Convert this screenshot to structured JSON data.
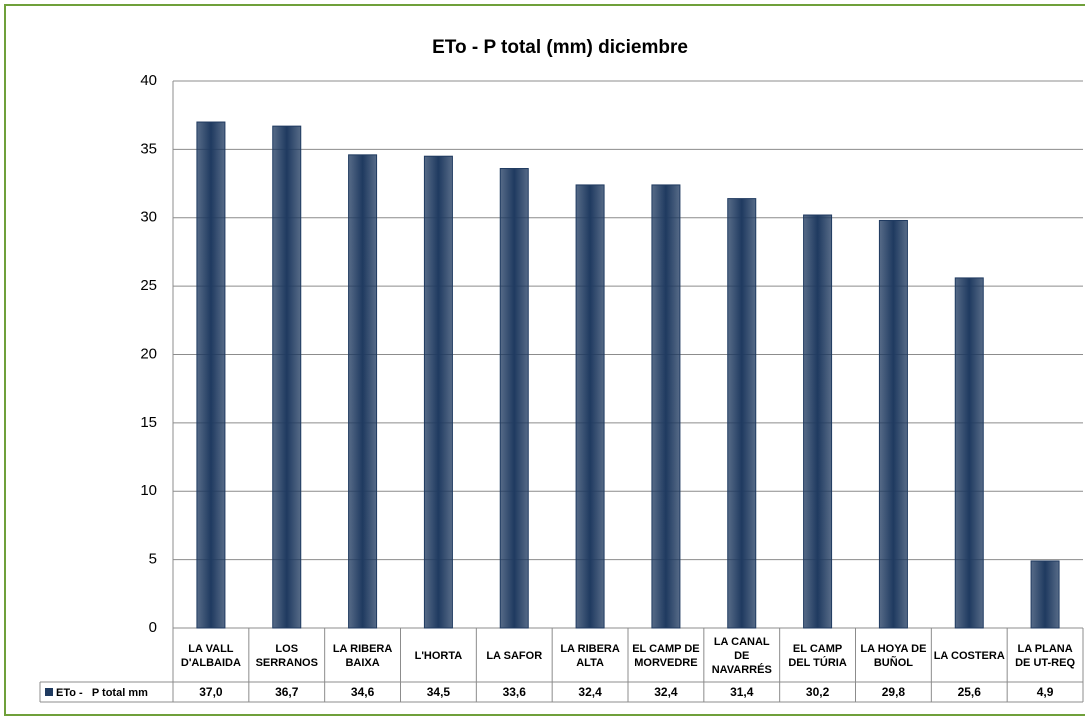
{
  "chart_data": {
    "type": "bar",
    "title": "ETo - P total (mm) diciembre",
    "categories": [
      "LA VALL D'ALBAIDA",
      "LOS SERRANOS",
      "LA RIBERA BAIXA",
      "L'HORTA",
      "LA SAFOR",
      "LA RIBERA ALTA",
      "EL CAMP DE MORVEDRE",
      "LA CANAL DE NAVARRÉS",
      "EL CAMP DEL TÚRIA",
      "LA HOYA DE BUÑOL",
      "LA COSTERA",
      "LA PLANA DE UT-REQ"
    ],
    "series": [
      {
        "name": "ETo -   P total mm",
        "color": "#1f3a60",
        "values": [
          37.0,
          36.7,
          34.6,
          34.5,
          33.6,
          32.4,
          32.4,
          31.4,
          30.2,
          29.8,
          25.6,
          4.9
        ],
        "value_labels": [
          "37,0",
          "36,7",
          "34,6",
          "34,5",
          "33,6",
          "32,4",
          "32,4",
          "31,4",
          "30,2",
          "29,8",
          "25,6",
          "4,9"
        ]
      }
    ],
    "ylim": [
      0,
      40
    ],
    "yticks": [
      0,
      5,
      10,
      15,
      20,
      25,
      30,
      35,
      40
    ],
    "grid": true,
    "legend": "data-table"
  }
}
